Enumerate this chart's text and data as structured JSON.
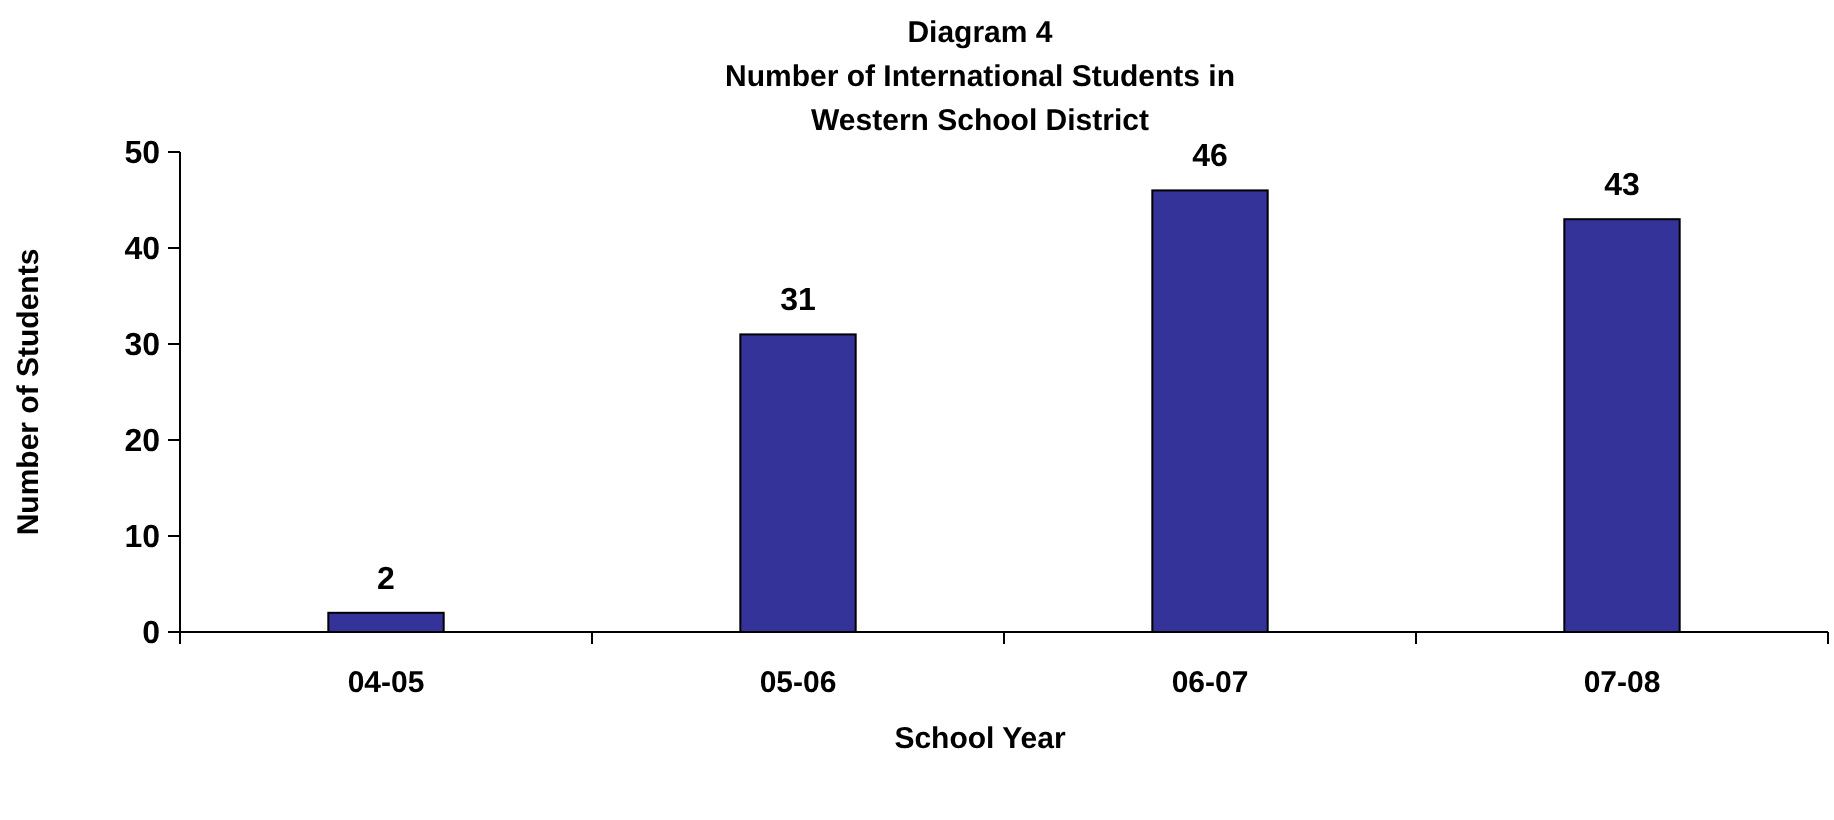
{
  "chart_data": {
    "type": "bar",
    "title": "Diagram 4\nNumber of International Students in\nWestern School District",
    "xlabel": "School Year",
    "ylabel": "Number of Students",
    "categories": [
      "04-05",
      "05-06",
      "06-07",
      "07-08"
    ],
    "values": [
      2,
      31,
      46,
      43
    ],
    "color": "#333399",
    "ylim": [
      0,
      50
    ],
    "yticks": [
      0,
      10,
      20,
      30,
      40,
      50
    ],
    "grid": false,
    "data_labels": true
  }
}
